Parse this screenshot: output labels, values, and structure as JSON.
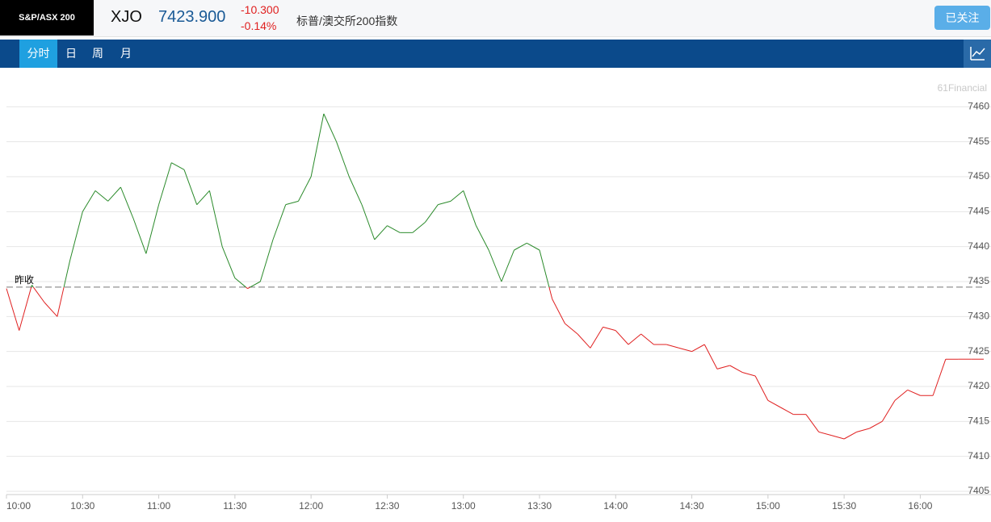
{
  "header": {
    "badge": "S&P/ASX 200",
    "symbol": "XJO",
    "price": "7423.900",
    "change": "-10.300",
    "change_pct": "-0.14%",
    "name": "标普/澳交所200指数",
    "follow_button": "已关注"
  },
  "tabs": [
    "分时",
    "日",
    "周",
    "月"
  ],
  "chart_data": {
    "type": "line",
    "watermark": "61Financial",
    "reference_label": "昨收",
    "reference_value": 7434.2,
    "x": [
      "10:00",
      "10:05",
      "10:10",
      "10:15",
      "10:20",
      "10:25",
      "10:30",
      "10:35",
      "10:40",
      "10:45",
      "10:50",
      "10:55",
      "11:00",
      "11:05",
      "11:10",
      "11:15",
      "11:20",
      "11:25",
      "11:30",
      "11:35",
      "11:40",
      "11:45",
      "11:50",
      "11:55",
      "12:00",
      "12:05",
      "12:10",
      "12:15",
      "12:20",
      "12:25",
      "12:30",
      "12:35",
      "12:40",
      "12:45",
      "12:50",
      "12:55",
      "13:00",
      "13:05",
      "13:10",
      "13:15",
      "13:20",
      "13:25",
      "13:30",
      "13:35",
      "13:40",
      "13:45",
      "13:50",
      "13:55",
      "14:00",
      "14:05",
      "14:10",
      "14:15",
      "14:20",
      "14:25",
      "14:30",
      "14:35",
      "14:40",
      "14:45",
      "14:50",
      "14:55",
      "15:00",
      "15:05",
      "15:10",
      "15:15",
      "15:20",
      "15:25",
      "15:30",
      "15:35",
      "15:40",
      "15:45",
      "15:50",
      "15:55",
      "16:00",
      "16:05",
      "16:10",
      "16:15",
      "16:20",
      "16:25"
    ],
    "series": [
      {
        "up_color": "#2a8a2a",
        "down_color": "#e02020",
        "values": [
          7434,
          7428,
          7434.5,
          7432,
          7430,
          7438,
          7445,
          7448,
          7446.5,
          7448.5,
          7444,
          7439,
          7446,
          7452,
          7451,
          7446,
          7448,
          7440,
          7435.5,
          7434,
          7435,
          7441,
          7446,
          7446.5,
          7450,
          7459,
          7455,
          7450,
          7446,
          7441,
          7443,
          7442,
          7442,
          7443.5,
          7446,
          7446.5,
          7448,
          7443,
          7439.5,
          7435,
          7439.5,
          7440.5,
          7439.5,
          7432.5,
          7429,
          7427.5,
          7425.5,
          7428.5,
          7428,
          7426,
          7427.5,
          7426,
          7426,
          7425.5,
          7425,
          7426,
          7422.5,
          7423,
          7422,
          7421.5,
          7418,
          7417,
          7416,
          7416,
          7413.5,
          7413,
          7412.5,
          7413.5,
          7414,
          7415,
          7418,
          7419.5,
          7418.7,
          7418.7,
          7423.9,
          7423.9,
          7423.9,
          7423.9
        ]
      }
    ],
    "xlim": [
      "10:00",
      "16:25"
    ],
    "xticks": [
      "10:00",
      "10:30",
      "11:00",
      "11:30",
      "12:00",
      "12:30",
      "13:00",
      "13:30",
      "14:00",
      "14:30",
      "15:00",
      "15:30",
      "16:00"
    ],
    "ylim": [
      7405,
      7465
    ],
    "yticks": [
      7405,
      7410,
      7415,
      7420,
      7425,
      7430,
      7435,
      7440,
      7445,
      7450,
      7455,
      7460
    ],
    "grid": true
  }
}
